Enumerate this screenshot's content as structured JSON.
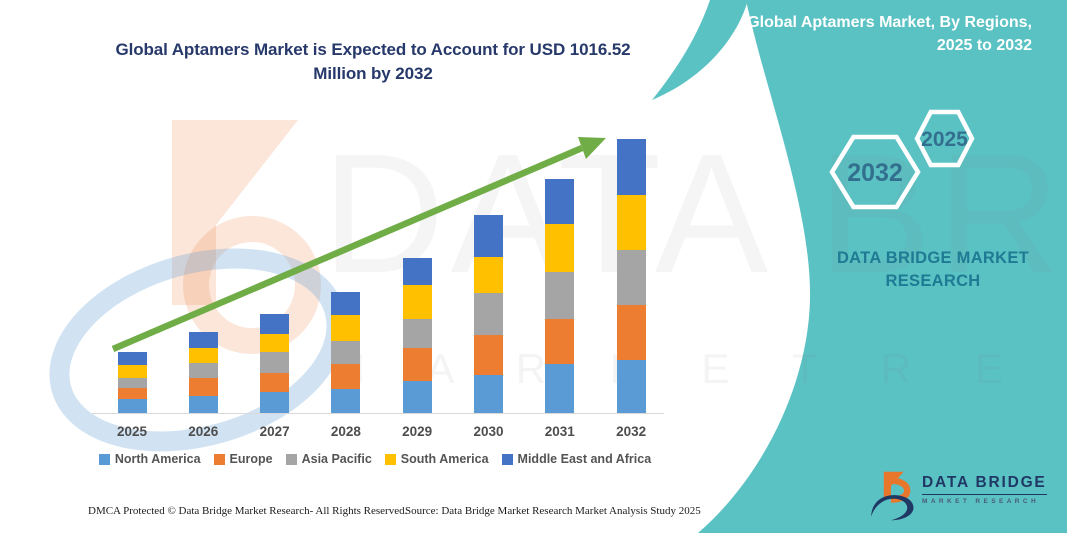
{
  "header": {
    "chart_title_line1": "Global Aptamers Market is Expected to Account for USD 1016.52",
    "chart_title_line2": "Million by 2032"
  },
  "side_panel": {
    "title_line1": "Global Aptamers Market, By Regions,",
    "title_line2": "2025 to 2032",
    "hexagon_back_label": "2032",
    "hexagon_front_label": "2025",
    "brand_line1": "DATA BRIDGE MARKET",
    "brand_line2": "RESEARCH"
  },
  "chart_data": {
    "type": "bar",
    "stacked": true,
    "unit": "USD Million",
    "title": "Global Aptamers Market is Expected to Account for USD 1016.52 Million by 2032",
    "categories": [
      "2025",
      "2026",
      "2027",
      "2028",
      "2029",
      "2030",
      "2031",
      "2032"
    ],
    "series": [
      {
        "name": "North America",
        "color": "#5B9BD5",
        "values": [
          52,
          63,
          78,
          89,
          119,
          141,
          182,
          197
        ]
      },
      {
        "name": "Europe",
        "color": "#ED7D31",
        "values": [
          41,
          67,
          70,
          93,
          122,
          148,
          167,
          204
        ]
      },
      {
        "name": "Asia Pacific",
        "color": "#A5A5A5",
        "values": [
          37,
          56,
          78,
          85,
          108,
          156,
          174,
          204
        ]
      },
      {
        "name": "South America",
        "color": "#FFC000",
        "values": [
          48,
          56,
          67,
          96,
          126,
          133,
          178,
          204
        ]
      },
      {
        "name": "Middle East and Africa",
        "color": "#4472C4",
        "values": [
          48,
          59,
          74,
          85,
          100,
          156,
          167,
          207.52
        ]
      }
    ],
    "totals_estimated": [
      226,
      301,
      367,
      448,
      575,
      734,
      868,
      1016.52
    ],
    "ylim": [
      0,
      1050
    ],
    "gridlines": false,
    "legend_position": "bottom",
    "trend_arrow": true,
    "trend_arrow_color": "#70AD47",
    "xlabel": "",
    "ylabel": ""
  },
  "watermark": {
    "big_text": "DATA BRIDGE",
    "row_text": "M A R K E T  R E S E A R C H"
  },
  "logo": {
    "title": "DATA BRIDGE",
    "subtitle": "MARKET RESEARCH"
  },
  "footer": {
    "left": "DMCA Protected © Data Bridge Market Research-  All Rights Reserved.",
    "right": "Source: Data Bridge Market Research  Market Analysis Study 2025"
  },
  "colors": {
    "band_teal": "#5BC2C4",
    "title_navy": "#27396B",
    "brand_teal": "#1F7A93",
    "hex_label_blue": "#33708F",
    "logo_navy": "#1F3864",
    "logo_orange": "#E8762B",
    "axis_gray": "#D9D9D9"
  }
}
